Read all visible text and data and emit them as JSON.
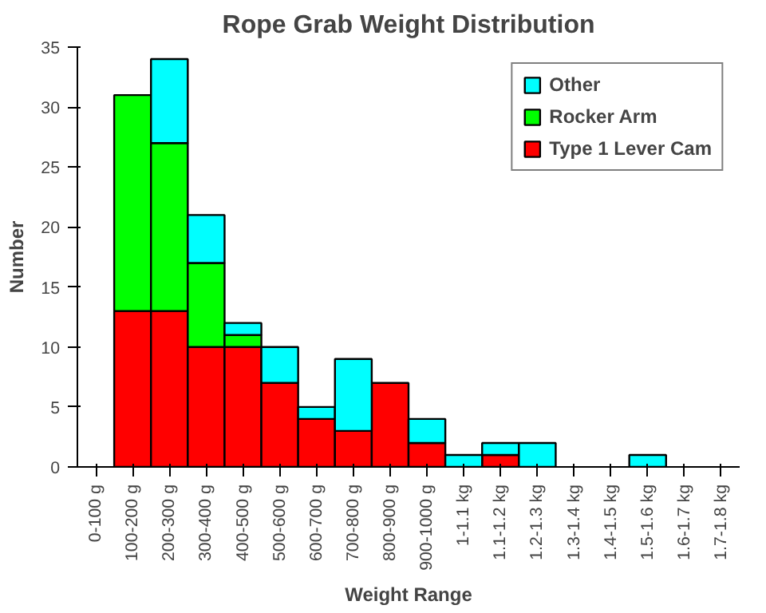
{
  "chart_data": {
    "type": "bar",
    "title": "Rope Grab Weight Distribution",
    "xlabel": "Weight Range",
    "ylabel": "Number",
    "categories": [
      "0-100 g",
      "100-200 g",
      "200-300 g",
      "300-400 g",
      "400-500 g",
      "500-600 g",
      "600-700 g",
      "700-800 g",
      "800-900 g",
      "900-1000 g",
      "1-1.1 kg",
      "1.1-1.2 kg",
      "1.2-1.3 kg",
      "1.3-1.4 kg",
      "1.4-1.5 kg",
      "1.5-1.6 kg",
      "1.6-1.7 kg",
      "1.7-1.8 kg"
    ],
    "stacked": true,
    "series": [
      {
        "name": "Type 1 Lever Cam",
        "color": "#ff0000",
        "values": [
          0,
          13,
          13,
          10,
          10,
          7,
          4,
          3,
          7,
          2,
          0,
          1,
          0,
          0,
          0,
          0,
          0,
          0
        ]
      },
      {
        "name": "Rocker Arm",
        "color": "#00ff00",
        "values": [
          0,
          18,
          14,
          7,
          1,
          0,
          0,
          0,
          0,
          0,
          0,
          0,
          0,
          0,
          0,
          0,
          0,
          0
        ]
      },
      {
        "name": "Other",
        "color": "#00ffff",
        "values": [
          0,
          0,
          7,
          4,
          1,
          3,
          1,
          6,
          0,
          2,
          1,
          1,
          2,
          0,
          0,
          1,
          0,
          0
        ]
      }
    ],
    "ylim": [
      0,
      35
    ],
    "yticks": [
      0,
      5,
      10,
      15,
      20,
      25,
      30,
      35
    ],
    "grid": false,
    "legend": "top right"
  }
}
